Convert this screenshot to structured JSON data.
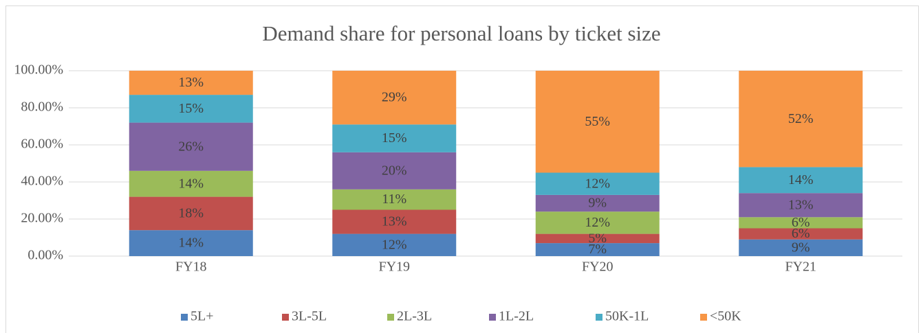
{
  "chart_data": {
    "type": "stacked_bar",
    "title": "Demand share for personal loans by ticket size",
    "categories": [
      "FY18",
      "FY19",
      "FY20",
      "FY21"
    ],
    "series": [
      {
        "name": "5L+",
        "color": "#4f81bd",
        "values": [
          14,
          12,
          7,
          9
        ],
        "value_labels": [
          "14%",
          "12%",
          "7%",
          "9%"
        ]
      },
      {
        "name": "3L-5L",
        "color": "#c0504d",
        "values": [
          18,
          13,
          5,
          6
        ],
        "value_labels": [
          "18%",
          "13%",
          "5%",
          "6%"
        ]
      },
      {
        "name": "2L-3L",
        "color": "#9bbb59",
        "values": [
          14,
          11,
          12,
          6
        ],
        "value_labels": [
          "14%",
          "11%",
          "12%",
          "6%"
        ]
      },
      {
        "name": "1L-2L",
        "color": "#8064a2",
        "values": [
          26,
          20,
          9,
          13
        ],
        "value_labels": [
          "26%",
          "20%",
          "9%",
          "13%"
        ]
      },
      {
        "name": "50K-1L",
        "color": "#4bacc6",
        "values": [
          15,
          15,
          12,
          14
        ],
        "value_labels": [
          "15%",
          "15%",
          "12%",
          "14%"
        ]
      },
      {
        "name": "<50K",
        "color": "#f79646",
        "values": [
          13,
          29,
          55,
          52
        ],
        "value_labels": [
          "13%",
          "29%",
          "55%",
          "52%"
        ]
      }
    ],
    "ylim": [
      0,
      100
    ],
    "yticks": [
      {
        "value": 0,
        "label": "0.00%"
      },
      {
        "value": 20,
        "label": "20.00%"
      },
      {
        "value": 40,
        "label": "40.00%"
      },
      {
        "value": 60,
        "label": "60.00%"
      },
      {
        "value": 80,
        "label": "80.00%"
      },
      {
        "value": 100,
        "label": "100.00%"
      }
    ],
    "grid": true,
    "legend": "bottom"
  }
}
